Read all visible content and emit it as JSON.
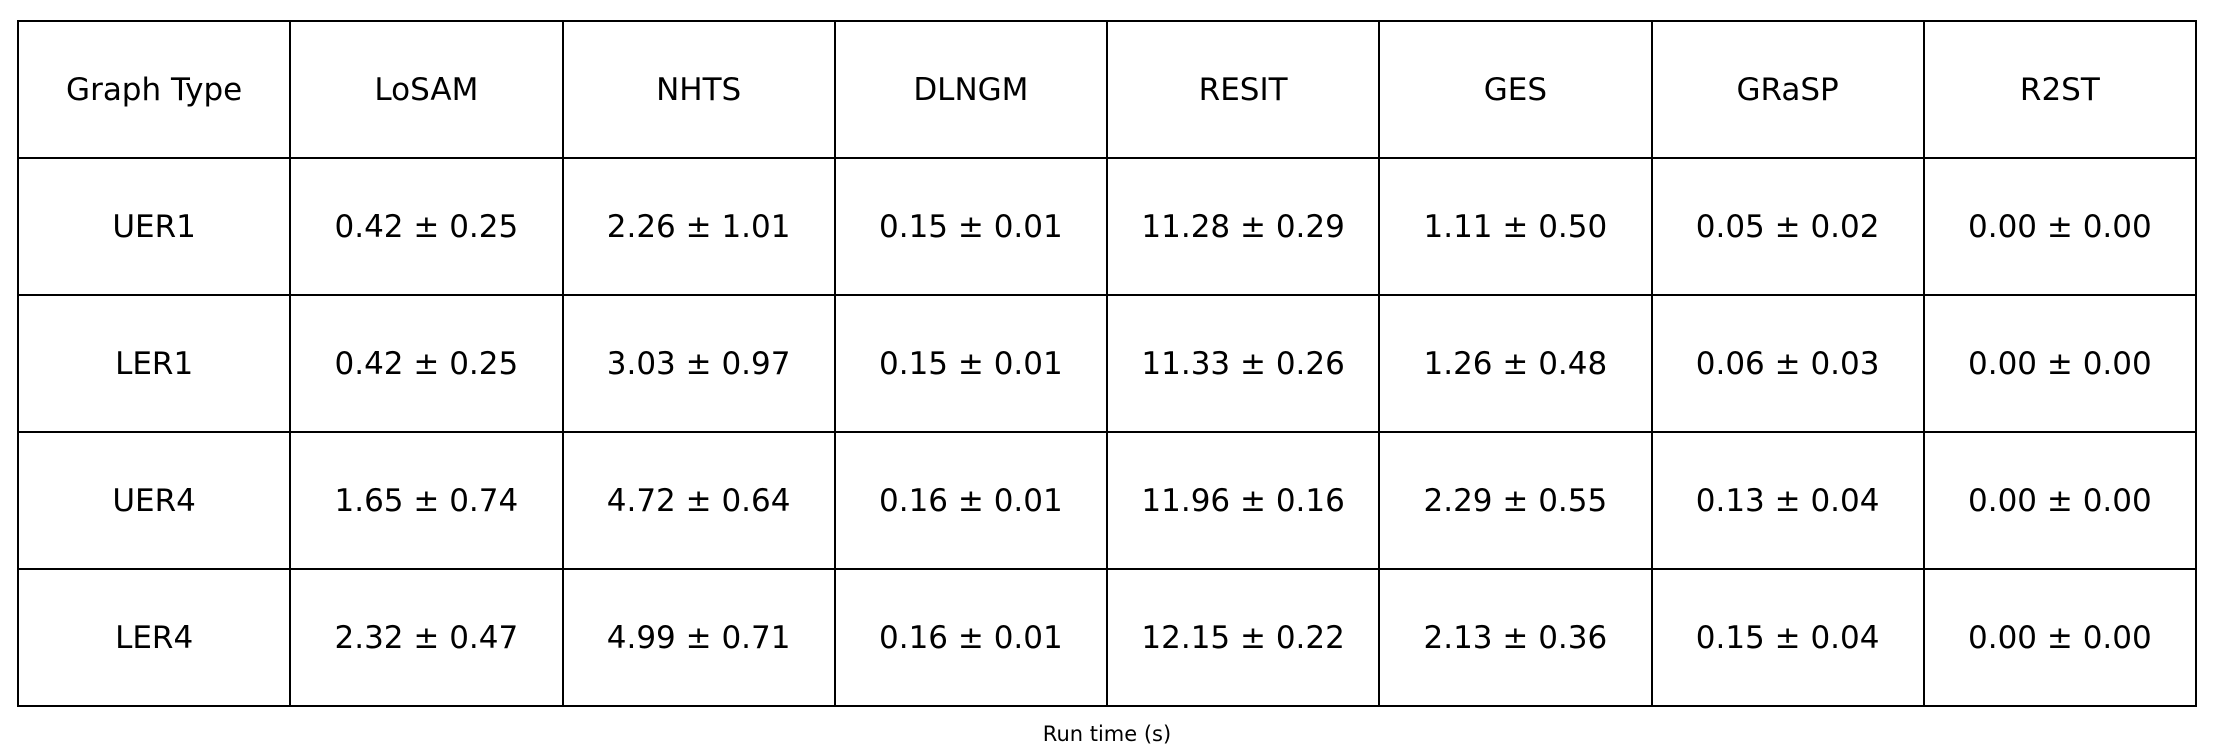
{
  "table": {
    "header": [
      "Graph Type",
      "LoSAM",
      "NHTS",
      "DLNGM",
      "RESIT",
      "GES",
      "GRaSP",
      "R2ST"
    ],
    "rows": [
      [
        "UER1",
        "0.42 ± 0.25",
        "2.26 ± 1.01",
        "0.15 ± 0.01",
        "11.28 ± 0.29",
        "1.11 ± 0.50",
        "0.05 ± 0.02",
        "0.00 ± 0.00"
      ],
      [
        "LER1",
        "0.42 ± 0.25",
        "3.03 ± 0.97",
        "0.15 ± 0.01",
        "11.33 ± 0.26",
        "1.26 ± 0.48",
        "0.06 ± 0.03",
        "0.00 ± 0.00"
      ],
      [
        "UER4",
        "1.65 ± 0.74",
        "4.72 ± 0.64",
        "0.16 ± 0.01",
        "11.96 ± 0.16",
        "2.29 ± 0.55",
        "0.13 ± 0.04",
        "0.00 ± 0.00"
      ],
      [
        "LER4",
        "2.32 ± 0.47",
        "4.99 ± 0.71",
        "0.16 ± 0.01",
        "12.15 ± 0.22",
        "2.13 ± 0.36",
        "0.15 ± 0.04",
        "0.00 ± 0.00"
      ]
    ],
    "caption": "Run time (s)"
  }
}
